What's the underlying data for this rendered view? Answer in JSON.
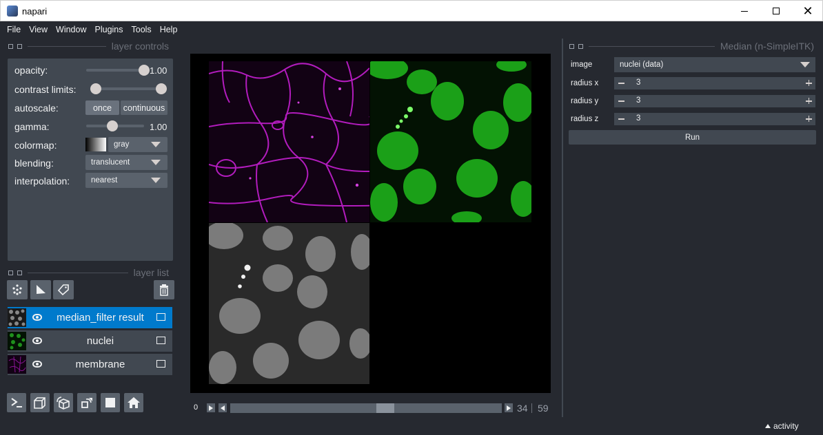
{
  "window": {
    "title": "napari"
  },
  "menu": [
    "File",
    "View",
    "Window",
    "Plugins",
    "Tools",
    "Help"
  ],
  "layer_controls": {
    "title": "layer controls",
    "opacity_label": "opacity:",
    "opacity_value": "1.00",
    "opacity_level": 1.0,
    "contrast_label": "contrast limits:",
    "autoscale_label": "autoscale:",
    "autoscale_once": "once",
    "autoscale_continuous": "continuous",
    "gamma_label": "gamma:",
    "gamma_value": "1.00",
    "colormap_label": "colormap:",
    "colormap_value": "gray",
    "blending_label": "blending:",
    "blending_value": "translucent",
    "interpolation_label": "interpolation:",
    "interpolation_value": "nearest"
  },
  "layer_list": {
    "title": "layer list",
    "layers": [
      {
        "name": "median_filter result",
        "selected": true,
        "thumb": "gray"
      },
      {
        "name": "nuclei",
        "selected": false,
        "thumb": "green"
      },
      {
        "name": "membrane",
        "selected": false,
        "thumb": "magenta"
      }
    ]
  },
  "tool_icons": [
    "points-icon",
    "shapes-icon",
    "labels-icon"
  ],
  "bottom_icons": [
    "console-icon",
    "ndisplay-icon",
    "roll-dims-icon",
    "transpose-icon",
    "grid-icon",
    "home-icon"
  ],
  "dims": {
    "start_label": "0",
    "current": "34",
    "total": "59"
  },
  "widget": {
    "title": "Median (n-SimpleITK)",
    "image_label": "image",
    "image_value": "nuclei (data)",
    "radius_x_label": "radius x",
    "radius_x_value": "3",
    "radius_y_label": "radius y",
    "radius_y_value": "3",
    "radius_z_label": "radius z",
    "radius_z_value": "3",
    "run_label": "Run"
  },
  "status": {
    "activity_label": "activity"
  },
  "colors": {
    "background": "#262930",
    "panel": "#414851",
    "control": "#5a626c",
    "selection": "#007acc",
    "membrane": "#c41fd0",
    "nuclei": "#22c41e"
  }
}
